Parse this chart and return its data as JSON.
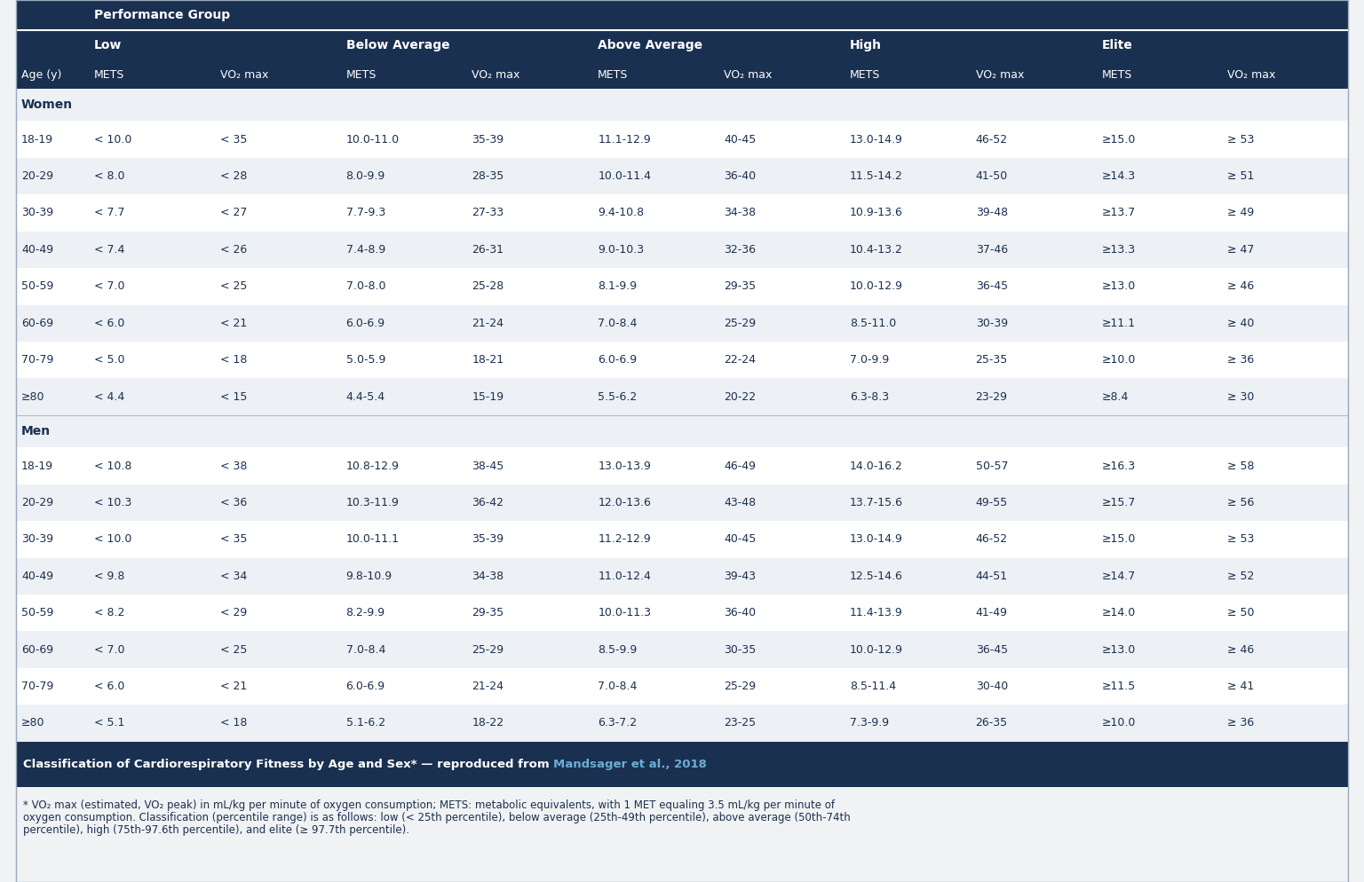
{
  "header_bg_color": "#1a3050",
  "header_text_color": "#ffffff",
  "row_odd_color": "#edf0f4",
  "row_even_color": "#ffffff",
  "text_color": "#1a3050",
  "footer_bg_color": "#1a3050",
  "footer_text_color": "#ffffff",
  "link_color": "#6baed6",
  "performance_group_label": "Performance Group",
  "col_groups": [
    "Low",
    "Below Average",
    "Above Average",
    "High",
    "Elite"
  ],
  "col_subheaders": [
    "METS",
    "VO₂ max",
    "METS",
    "VO₂ max",
    "METS",
    "VO₂ max",
    "METS",
    "VO₂ max",
    "METS",
    "VO₂ max"
  ],
  "age_col_header": "Age (y)",
  "women_section": "Women",
  "men_section": "Men",
  "women_rows": [
    [
      "18-19",
      "< 10.0",
      "< 35",
      "10.0-11.0",
      "35-39",
      "11.1-12.9",
      "40-45",
      "13.0-14.9",
      "46-52",
      "≥15.0",
      "≥ 53"
    ],
    [
      "20-29",
      "< 8.0",
      "< 28",
      "8.0-9.9",
      "28-35",
      "10.0-11.4",
      "36-40",
      "11.5-14.2",
      "41-50",
      "≥14.3",
      "≥ 51"
    ],
    [
      "30-39",
      "< 7.7",
      "< 27",
      "7.7-9.3",
      "27-33",
      "9.4-10.8",
      "34-38",
      "10.9-13.6",
      "39-48",
      "≥13.7",
      "≥ 49"
    ],
    [
      "40-49",
      "< 7.4",
      "< 26",
      "7.4-8.9",
      "26-31",
      "9.0-10.3",
      "32-36",
      "10.4-13.2",
      "37-46",
      "≥13.3",
      "≥ 47"
    ],
    [
      "50-59",
      "< 7.0",
      "< 25",
      "7.0-8.0",
      "25-28",
      "8.1-9.9",
      "29-35",
      "10.0-12.9",
      "36-45",
      "≥13.0",
      "≥ 46"
    ],
    [
      "60-69",
      "< 6.0",
      "< 21",
      "6.0-6.9",
      "21-24",
      "7.0-8.4",
      "25-29",
      "8.5-11.0",
      "30-39",
      "≥11.1",
      "≥ 40"
    ],
    [
      "70-79",
      "< 5.0",
      "< 18",
      "5.0-5.9",
      "18-21",
      "6.0-6.9",
      "22-24",
      "7.0-9.9",
      "25-35",
      "≥10.0",
      "≥ 36"
    ],
    [
      "≥80",
      "< 4.4",
      "< 15",
      "4.4-5.4",
      "15-19",
      "5.5-6.2",
      "20-22",
      "6.3-8.3",
      "23-29",
      "≥8.4",
      "≥ 30"
    ]
  ],
  "men_rows": [
    [
      "18-19",
      "< 10.8",
      "< 38",
      "10.8-12.9",
      "38-45",
      "13.0-13.9",
      "46-49",
      "14.0-16.2",
      "50-57",
      "≥16.3",
      "≥ 58"
    ],
    [
      "20-29",
      "< 10.3",
      "< 36",
      "10.3-11.9",
      "36-42",
      "12.0-13.6",
      "43-48",
      "13.7-15.6",
      "49-55",
      "≥15.7",
      "≥ 56"
    ],
    [
      "30-39",
      "< 10.0",
      "< 35",
      "10.0-11.1",
      "35-39",
      "11.2-12.9",
      "40-45",
      "13.0-14.9",
      "46-52",
      "≥15.0",
      "≥ 53"
    ],
    [
      "40-49",
      "< 9.8",
      "< 34",
      "9.8-10.9",
      "34-38",
      "11.0-12.4",
      "39-43",
      "12.5-14.6",
      "44-51",
      "≥14.7",
      "≥ 52"
    ],
    [
      "50-59",
      "< 8.2",
      "< 29",
      "8.2-9.9",
      "29-35",
      "10.0-11.3",
      "36-40",
      "11.4-13.9",
      "41-49",
      "≥14.0",
      "≥ 50"
    ],
    [
      "60-69",
      "< 7.0",
      "< 25",
      "7.0-8.4",
      "25-29",
      "8.5-9.9",
      "30-35",
      "10.0-12.9",
      "36-45",
      "≥13.0",
      "≥ 46"
    ],
    [
      "70-79",
      "< 6.0",
      "< 21",
      "6.0-6.9",
      "21-24",
      "7.0-8.4",
      "25-29",
      "8.5-11.4",
      "30-40",
      "≥11.5",
      "≥ 41"
    ],
    [
      "≥80",
      "< 5.1",
      "< 18",
      "5.1-6.2",
      "18-22",
      "6.3-7.2",
      "23-25",
      "7.3-9.9",
      "26-35",
      "≥10.0",
      "≥ 36"
    ]
  ],
  "footer_before_link": "Classification of Cardiorespiratory Fitness by Age and Sex* — reproduced from ",
  "footer_link": "Mandsager et al., 2018",
  "footnote_line1": "* VO₂ max (estimated, VO₂ peak) in mL/kg per minute of oxygen consumption; METS: metabolic equivalents, with 1 MET equaling 3.5 mL/kg per minute of",
  "footnote_line2": "oxygen consumption. Classification (percentile range) is as follows: low (< 25th percentile), below average (25th-49th percentile), above average (50th-74th",
  "footnote_line3": "percentile), high (75th-97.6th percentile), and elite (≥ 97.7th percentile)."
}
